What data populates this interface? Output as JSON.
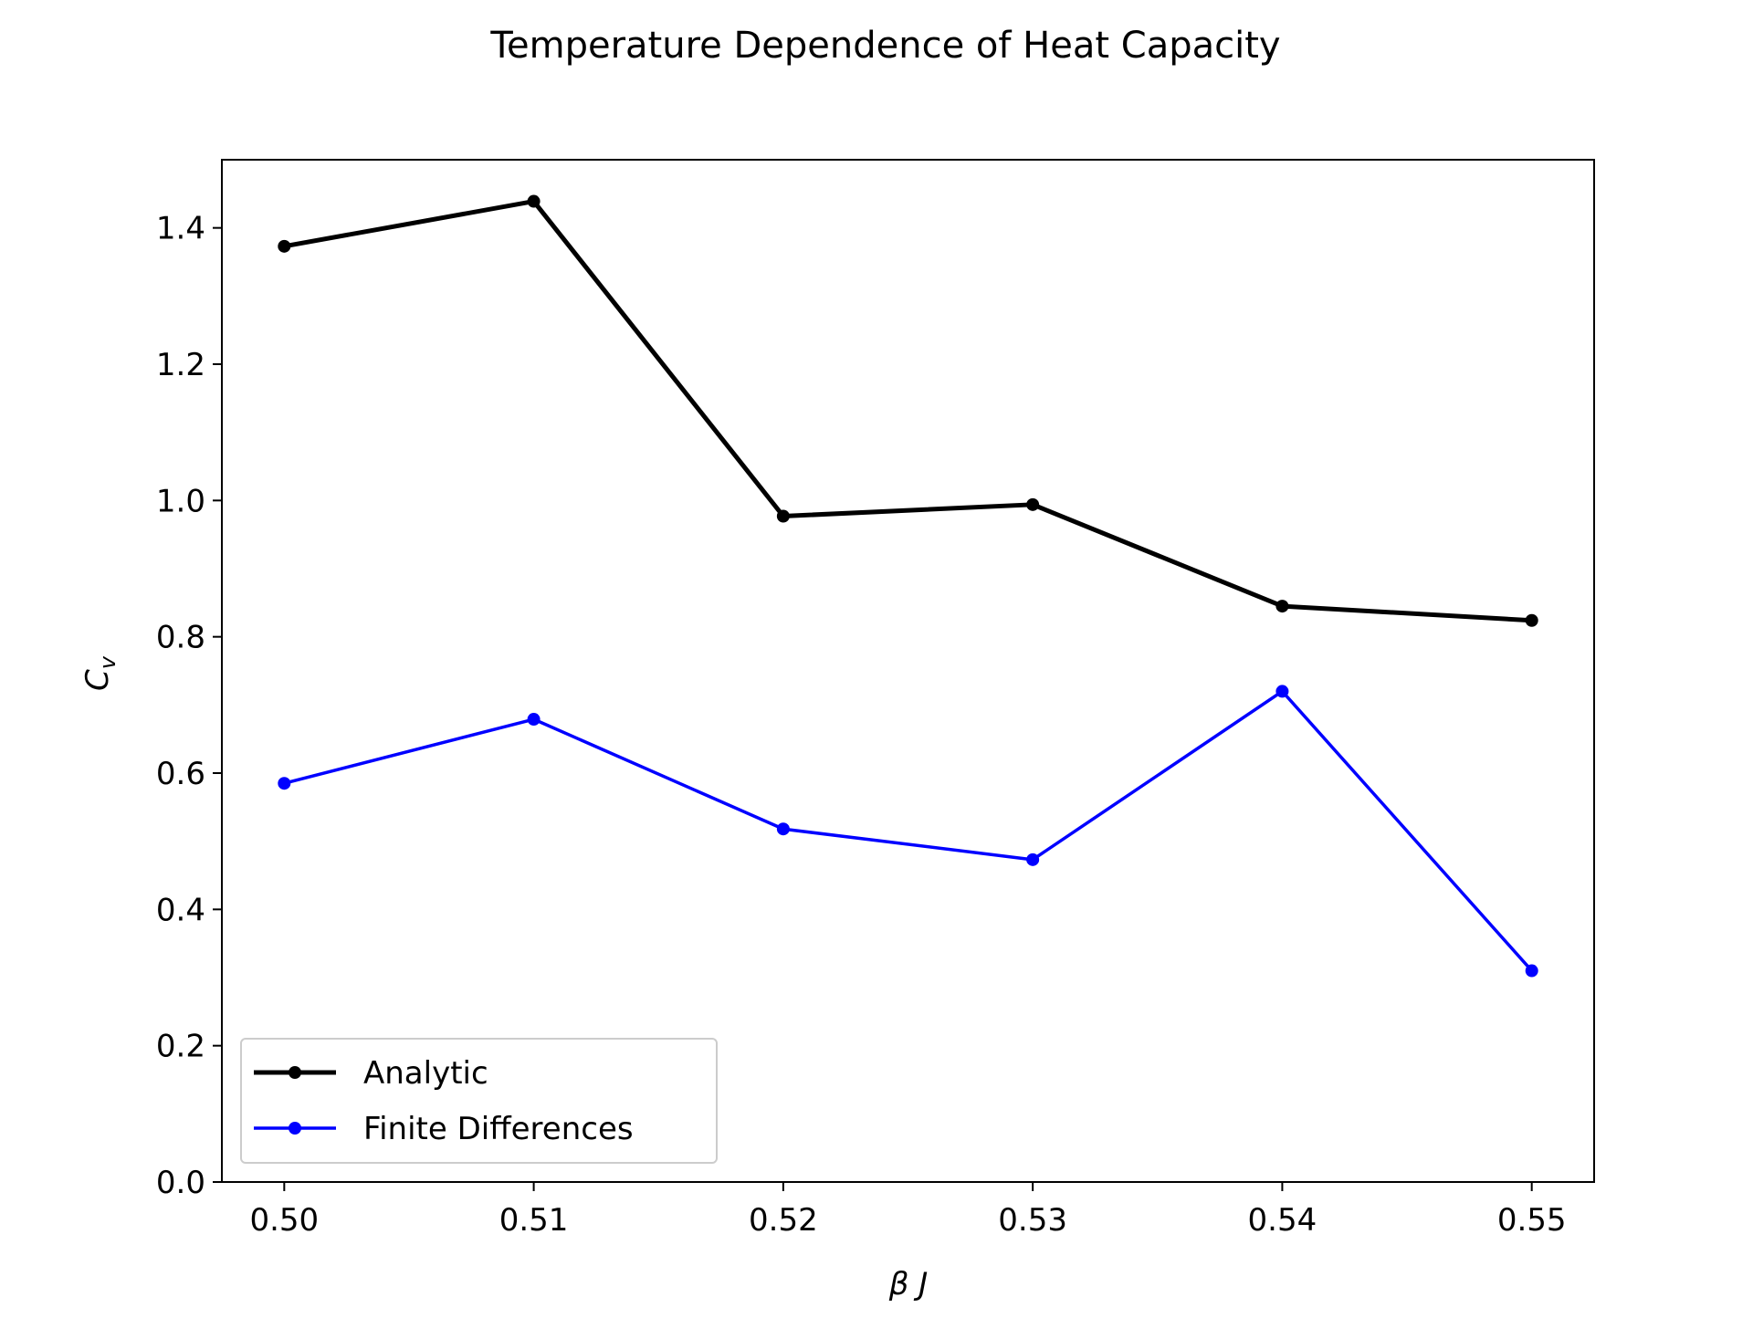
{
  "chart_data": {
    "type": "line",
    "title": "Temperature Dependence of Heat Capacity",
    "xlabel": "β J",
    "ylabel": "C_v",
    "x": [
      0.5,
      0.51,
      0.52,
      0.53,
      0.54,
      0.55
    ],
    "xticks": [
      "0.50",
      "0.51",
      "0.52",
      "0.53",
      "0.54",
      "0.55"
    ],
    "yticks": [
      "0.0",
      "0.2",
      "0.4",
      "0.6",
      "0.8",
      "1.0",
      "1.2",
      "1.4"
    ],
    "xlim": [
      0.4975,
      0.5525
    ],
    "ylim": [
      0.0,
      1.5
    ],
    "grid": false,
    "legend_position": "lower-left",
    "series": [
      {
        "name": "Analytic",
        "color": "#000000",
        "values": [
          1.373,
          1.439,
          0.977,
          0.994,
          0.845,
          0.824
        ]
      },
      {
        "name": "Finite Differences",
        "color": "#0000ff",
        "values": [
          0.585,
          0.679,
          0.518,
          0.473,
          0.72,
          0.31
        ]
      }
    ]
  }
}
